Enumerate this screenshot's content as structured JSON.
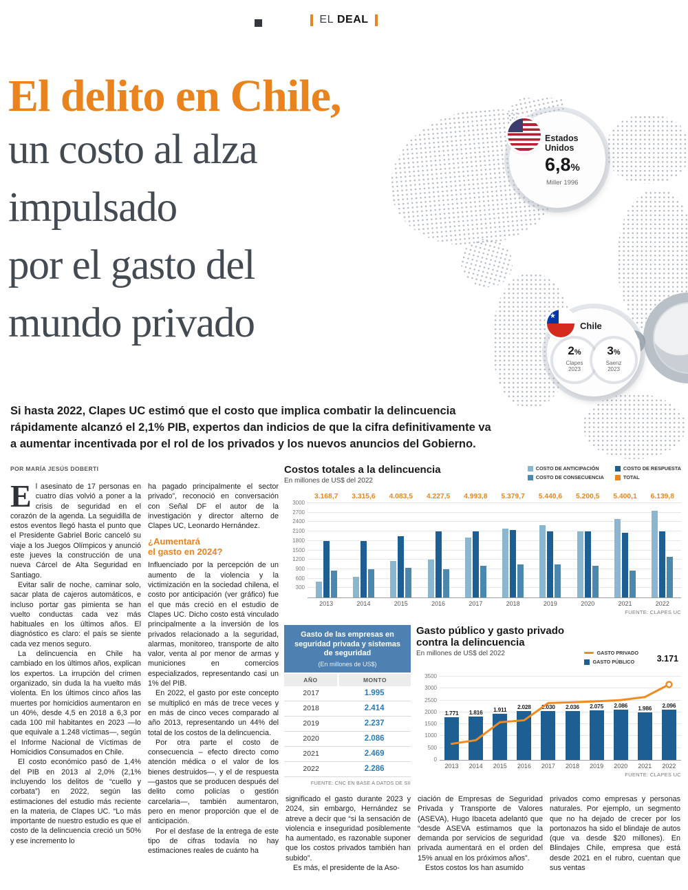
{
  "masthead": {
    "el": "EL",
    "deal": "DEAL"
  },
  "headline": {
    "line1": "El delito en Chile,",
    "lines": [
      "un costo al alza",
      "impulsado",
      "por el gasto del",
      "mundo privado"
    ]
  },
  "badges": {
    "us": {
      "country_l1": "Estados",
      "country_l2": "Unidos",
      "value": "6,8",
      "unit": "%",
      "source": "Miller 1996"
    },
    "chile": {
      "country": "Chile",
      "stats": [
        {
          "value": "2",
          "unit": "%",
          "src_l1": "Clapes",
          "src_l2": "2023"
        },
        {
          "value": "3",
          "unit": "%",
          "src_l1": "Saenz",
          "src_l2": "2023"
        }
      ]
    }
  },
  "lede": "Si hasta 2022, Clapes UC estimó que el costo que implica combatir la delincuencia rápidamente alcanzó el 2,1% PIB, expertos dan indicios de que la cifra definitivamente va a aumentar incentivada por el rol de los privados y los nuevos anuncios del Gobierno.",
  "byline": "POR MARÍA JESÚS DOBERTI",
  "article": {
    "col1": [
      "El asesinato de 17 personas en cuatro días volvió a poner a la crisis de seguridad en el corazón de la agenda. La seguidilla de estos eventos llegó hasta el punto que el Presidente Gabriel Boric canceló su viaje a los Juegos Olímpicos y anunció este jueves la construcción de una nueva Cárcel de Alta Seguridad en Santiago.",
      "Evitar salir de noche, caminar solo, sacar plata de cajeros automáticos, e incluso portar gas pimienta se han vuelto conductas cada vez más habituales en los últimos años. El diagnóstico es claro: el país se siente cada vez menos seguro.",
      "La delincuencia en Chile ha cambiado en los últimos años, explican los expertos. La irrupción del crimen organizado, sin duda la ha vuelto más violenta. En los últimos cinco años las muertes por homicidios aumentaron en un 40%, desde 4,5 en 2018 a 6,3 por cada 100 mil habitantes en 2023 —lo que equivale a 1.248 víctimas—, según el Informe Nacional de Víctimas de Homicidios Consumados en Chile.",
      "El costo económico pasó de 1,4% del PIB en 2013 al 2,0% (2,1% incluyendo los delitos de “cuello y corbata”) en 2022, según las estimaciones del estudio más reciente en la materia, de Clapes UC. “Lo más importante de nuestro estudio es que el costo de la delincuencia creció un 50% y ese incremento lo"
    ],
    "col2_lead": "ha pagado principalmente el sector privado”, reconoció en conversación con Señal DF el autor de la investigación y director alterno de Clapes UC, Leonardo Hernández.",
    "subhead": [
      "¿Aumentará",
      "el gasto en 2024?"
    ],
    "col2": [
      "Influenciado por la percepción de un aumento de la violencia y la victimización en la sociedad chilena, el costo por anticipación (ver gráfico) fue el que más creció en el estudio de Clapes UC. Dicho costo está vinculado principalmente a la inversión de los privados relacionado a la seguridad, alarmas, monitoreo, transporte de alto valor, venta al por menor de armas y municiones en comercios especializados, representando casi un 1% del PIB.",
      "En 2022, el gasto por este concepto se multiplicó en más de trece veces y en más de cinco veces comparado al año 2013, representando un 44% del total de los costos de la delincuencia.",
      "Por otra parte el costo de consecuencia – efecto directo como atención médica o el valor de los bienes destruidos—, y el de respuesta —gastos que se producen después del delito como policías o gestión carcelaria—, también aumentaron, pero en menor proporción que el de anticipación.",
      "Por el desfase de la entrega de este tipo de cifras todavía no hay estimaciones reales de cuánto ha"
    ],
    "bottom1": [
      "significado el gasto durante 2023 y 2024, sin embargo, Hernández se atreve a decir que “si la sensación de violencia e inseguridad posiblemente ha aumentado, es razonable suponer que los costos privados también han subido”.",
      "Es más, el presidente de la Aso-"
    ],
    "bottom2": [
      "ciación de Empresas de Seguridad Privada y Transporte de Valores (ASEVA), Hugo Ibaceta adelantó que “desde ASEVA estimamos que la demanda por servicios de seguridad privada aumentará en el orden del 15% anual en los próximos años”.",
      "Estos costos los han asumido"
    ],
    "bottom3": [
      "privados como empresas y personas naturales. Por ejemplo, un segmento que no ha dejado de crecer por los portonazos ha sido el blindaje de autos (que va desde $20 millones). En Blindajes Chile, empresa que está desde 2021 en el rubro, cuentan que sus ventas"
    ]
  },
  "security_table": {
    "title": "Gasto de las empresas en seguridad privada y sistemas de seguridad",
    "subtitle": "(En millones de US$)",
    "col_year": "AÑO",
    "col_amount": "MONTO",
    "rows": [
      {
        "year": "2017",
        "amount": "1.995"
      },
      {
        "year": "2018",
        "amount": "2.414"
      },
      {
        "year": "2019",
        "amount": "2.237"
      },
      {
        "year": "2020",
        "amount": "2.086"
      },
      {
        "year": "2021",
        "amount": "2.469"
      },
      {
        "year": "2022",
        "amount": "2.286"
      }
    ],
    "source": "FUENTE: CNC EN BASE A DATOS DE SII"
  },
  "chart_data": [
    {
      "type": "bar",
      "title": "Costos totales a la delincuencia",
      "subtitle": "En millones de US$ del 2022",
      "source": "FUENTE: CLAPES UC",
      "categories": [
        "2013",
        "2014",
        "2015",
        "2016",
        "2017",
        "2018",
        "2019",
        "2020",
        "2021",
        "2022"
      ],
      "ylim": [
        0,
        3000
      ],
      "yticks": [
        300,
        600,
        900,
        1200,
        1500,
        1800,
        2100,
        2400,
        2700,
        3000
      ],
      "grid": true,
      "legend_position": "top-right",
      "totals_label": "TOTAL",
      "total_color": "#e8871e",
      "totals": [
        "3.168,7",
        "3.315,6",
        "4.083,5",
        "4.227,5",
        "4.993,8",
        "5.379,7",
        "5.440,6",
        "5.200,5",
        "5.400,1",
        "6.139,8"
      ],
      "series": [
        {
          "name": "COSTO DE ANTICIPACIÓN",
          "color": "#8ab7cf",
          "values": [
            500,
            650,
            1150,
            1200,
            1900,
            2200,
            2300,
            2100,
            2500,
            2750
          ]
        },
        {
          "name": "COSTO DE RESPUESTA",
          "color": "#1d5f93",
          "values": [
            1800,
            1800,
            1950,
            2100,
            2100,
            2150,
            2100,
            2100,
            2050,
            2100
          ]
        },
        {
          "name": "COSTO DE CONSECUENCIA",
          "color": "#4c88ad",
          "values": [
            850,
            900,
            950,
            900,
            1000,
            1050,
            1050,
            1000,
            850,
            1300
          ]
        }
      ]
    },
    {
      "type": "bar+line",
      "title_l1": "Gasto público y gasto privado",
      "title_l2": "contra la delincuencia",
      "subtitle": "En millones de US$ del 2022",
      "source": "FUENTE: CLAPES UC",
      "categories": [
        "2013",
        "2014",
        "2015",
        "2016",
        "2017",
        "2018",
        "2019",
        "2020",
        "2021",
        "2022"
      ],
      "ylim": [
        0,
        3500
      ],
      "yticks": [
        0,
        500,
        1000,
        1500,
        2000,
        2500,
        3000,
        3500
      ],
      "grid": true,
      "legend_position": "top-right",
      "bars": {
        "name": "GASTO PÚBLICO",
        "color": "#1d5f93",
        "values": [
          1771,
          1816,
          1911,
          2028,
          2030,
          2036,
          2075,
          2086,
          1986,
          2096
        ],
        "labels": [
          "1.771",
          "1.816",
          "1.911",
          "2.028",
          "2.030",
          "2.036",
          "2.075",
          "2.086",
          "1.986",
          "2.096"
        ]
      },
      "line": {
        "name": "GASTO PRIVADO",
        "color": "#f08b1f",
        "values": [
          700,
          850,
          1600,
          1680,
          2400,
          2430,
          2470,
          2520,
          2650,
          3171
        ],
        "end_label": "3.171"
      }
    }
  ]
}
